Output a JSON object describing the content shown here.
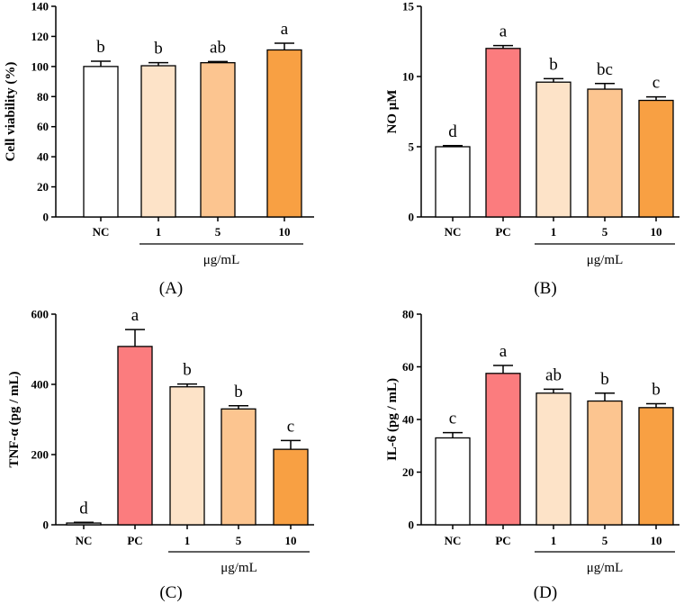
{
  "chart_data": [
    {
      "type": "bar",
      "panel_label": "(A)",
      "ylabel": "Cell viability (%)",
      "ylim": [
        0,
        140
      ],
      "yticks": [
        0,
        20,
        40,
        60,
        80,
        100,
        120,
        140
      ],
      "categories": [
        "NC",
        "1",
        "5",
        "10"
      ],
      "values": [
        100,
        100.5,
        102.5,
        111
      ],
      "errors": [
        3.5,
        2,
        0.8,
        4.5
      ],
      "significance": [
        "b",
        "b",
        "ab",
        "a"
      ],
      "colors": [
        "#ffffff",
        "#fde3c8",
        "#fcc590",
        "#f8a043"
      ],
      "group_label": "μg/mL",
      "group_start": 1
    },
    {
      "type": "bar",
      "panel_label": "(B)",
      "ylabel": "NO μM",
      "ylim": [
        0,
        15
      ],
      "yticks": [
        0,
        5,
        10,
        15
      ],
      "categories": [
        "NC",
        "PC",
        "1",
        "5",
        "10"
      ],
      "values": [
        5.0,
        12.0,
        9.6,
        9.1,
        8.3
      ],
      "errors": [
        0.08,
        0.2,
        0.25,
        0.4,
        0.25
      ],
      "significance": [
        "d",
        "a",
        "b",
        "bc",
        "c"
      ],
      "colors": [
        "#ffffff",
        "#fb7c7e",
        "#fde3c8",
        "#fcc590",
        "#f8a043"
      ],
      "group_label": "μg/mL",
      "group_start": 2
    },
    {
      "type": "bar",
      "panel_label": "(C)",
      "ylabel": "TNF-α (pg / mL)",
      "ylim": [
        0,
        600
      ],
      "yticks": [
        0,
        200,
        400,
        600
      ],
      "categories": [
        "NC",
        "PC",
        "1",
        "5",
        "10"
      ],
      "values": [
        5,
        508,
        393,
        330,
        215
      ],
      "errors": [
        2,
        48,
        8,
        9,
        25
      ],
      "significance": [
        "d",
        "a",
        "b",
        "b",
        "c"
      ],
      "colors": [
        "#ffffff",
        "#fb7c7e",
        "#fde3c8",
        "#fcc590",
        "#f8a043"
      ],
      "group_label": "μg/mL",
      "group_start": 2
    },
    {
      "type": "bar",
      "panel_label": "(D)",
      "ylabel": "IL-6 (pg / mL)",
      "ylim": [
        0,
        80
      ],
      "yticks": [
        0,
        20,
        40,
        60,
        80
      ],
      "categories": [
        "NC",
        "PC",
        "1",
        "5",
        "10"
      ],
      "values": [
        33,
        57.5,
        50,
        47,
        44.5
      ],
      "errors": [
        2,
        3,
        1.5,
        3,
        1.5
      ],
      "significance": [
        "c",
        "a",
        "ab",
        "b",
        "b"
      ],
      "colors": [
        "#ffffff",
        "#fb7c7e",
        "#fde3c8",
        "#fcc590",
        "#f8a043"
      ],
      "group_label": "μg/mL",
      "group_start": 2
    }
  ]
}
